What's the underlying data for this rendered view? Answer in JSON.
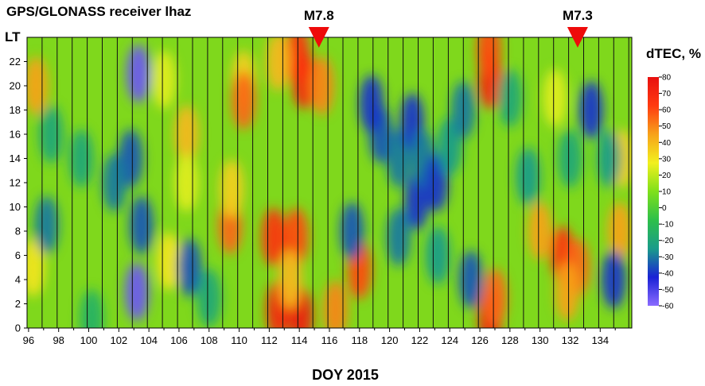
{
  "chart_data": {
    "type": "heatmap",
    "title": "GPS/GLONASS receiver lhaz",
    "xlabel": "DOY 2015",
    "ylabel": "LT",
    "colorbar_label": "dTEC, %",
    "xlim": [
      95.9,
      136.1
    ],
    "ylim": [
      0,
      24
    ],
    "x_ticks": [
      "96",
      "98",
      "100",
      "102",
      "104",
      "106",
      "108",
      "110",
      "112",
      "114",
      "116",
      "118",
      "120",
      "122",
      "124",
      "126",
      "128",
      "130",
      "132",
      "134"
    ],
    "y_ticks": [
      "0",
      "2",
      "4",
      "6",
      "8",
      "10",
      "12",
      "14",
      "16",
      "18",
      "20",
      "22"
    ],
    "colorbar_ticks": [
      "80",
      "70",
      "60",
      "50",
      "40",
      "30",
      "20",
      "10",
      "0",
      "-10",
      "-20",
      "-30",
      "-40",
      "-50",
      "-60"
    ],
    "colorbar_range": [
      -60,
      80
    ],
    "colorbar_colors": [
      "#8b6bff",
      "#1a22d6",
      "#1a9c8a",
      "#2ec04a",
      "#7fe01a",
      "#f2f01e",
      "#f7a21a",
      "#ff3a10",
      "#e8100f"
    ],
    "day_boundaries": [
      96.9,
      97.9,
      98.9,
      99.9,
      100.9,
      101.9,
      102.9,
      103.9,
      104.9,
      105.9,
      106.9,
      107.9,
      108.9,
      109.9,
      110.9,
      111.9,
      112.9,
      113.9,
      114.9,
      115.9,
      116.9,
      117.9,
      118.9,
      119.9,
      120.9,
      121.9,
      122.9,
      123.9,
      124.9,
      125.9,
      126.9,
      127.9,
      128.9,
      129.9,
      130.9,
      131.9,
      132.9,
      133.9,
      134.9,
      135.9
    ],
    "earthquakes": [
      {
        "label": "M7.8",
        "doy": 115.3
      },
      {
        "label": "M7.3",
        "doy": 132.5
      }
    ],
    "features": [
      {
        "doy": 114.3,
        "lt": 20.5,
        "value": 70
      },
      {
        "doy": 113.9,
        "lt": 22.5,
        "value": 65
      },
      {
        "doy": 112.6,
        "lt": 22.0,
        "value": 40
      },
      {
        "doy": 115.5,
        "lt": 20.0,
        "value": 50
      },
      {
        "doy": 112.3,
        "lt": 7.5,
        "value": 65
      },
      {
        "doy": 113.8,
        "lt": 7.5,
        "value": 60
      },
      {
        "doy": 112.6,
        "lt": 1.5,
        "value": 70
      },
      {
        "doy": 114.1,
        "lt": 1.0,
        "value": 75
      },
      {
        "doy": 113.4,
        "lt": 4.0,
        "value": 40
      },
      {
        "doy": 109.4,
        "lt": 8.5,
        "value": 55
      },
      {
        "doy": 109.5,
        "lt": 11.5,
        "value": 35
      },
      {
        "doy": 106.5,
        "lt": 16.0,
        "value": 40
      },
      {
        "doy": 106.5,
        "lt": 12.0,
        "value": 25
      },
      {
        "doy": 110.3,
        "lt": 20.5,
        "value": 35
      },
      {
        "doy": 110.3,
        "lt": 18.8,
        "value": 55
      },
      {
        "doy": 105.0,
        "lt": 20.5,
        "value": 25
      },
      {
        "doy": 105.3,
        "lt": 5.5,
        "value": 30
      },
      {
        "doy": 96.5,
        "lt": 20.0,
        "value": 45
      },
      {
        "doy": 96.3,
        "lt": 5.0,
        "value": 30
      },
      {
        "doy": 118.0,
        "lt": 4.8,
        "value": 60
      },
      {
        "doy": 116.4,
        "lt": 1.5,
        "value": 50
      },
      {
        "doy": 126.7,
        "lt": 1.0,
        "value": 75
      },
      {
        "doy": 127.0,
        "lt": 2.5,
        "value": 55
      },
      {
        "doy": 126.7,
        "lt": 20.5,
        "value": 70
      },
      {
        "doy": 126.6,
        "lt": 23.0,
        "value": 60
      },
      {
        "doy": 131.5,
        "lt": 6.0,
        "value": 65
      },
      {
        "doy": 132.5,
        "lt": 5.0,
        "value": 55
      },
      {
        "doy": 131.8,
        "lt": 3.0,
        "value": 45
      },
      {
        "doy": 130.0,
        "lt": 8.0,
        "value": 45
      },
      {
        "doy": 135.3,
        "lt": 8.0,
        "value": 45
      },
      {
        "doy": 135.5,
        "lt": 14.0,
        "value": 35
      },
      {
        "doy": 131.0,
        "lt": 19.0,
        "value": 25
      },
      {
        "doy": 103.3,
        "lt": 21.0,
        "value": -55
      },
      {
        "doy": 102.8,
        "lt": 14.0,
        "value": -35
      },
      {
        "doy": 103.2,
        "lt": 3.0,
        "value": -55
      },
      {
        "doy": 103.5,
        "lt": 8.5,
        "value": -35
      },
      {
        "doy": 101.7,
        "lt": 12.0,
        "value": -30
      },
      {
        "doy": 97.2,
        "lt": 8.5,
        "value": -30
      },
      {
        "doy": 99.5,
        "lt": 14.0,
        "value": -20
      },
      {
        "doy": 97.5,
        "lt": 16.0,
        "value": -20
      },
      {
        "doy": 106.7,
        "lt": 5.0,
        "value": -35
      },
      {
        "doy": 119.4,
        "lt": 16.0,
        "value": -35
      },
      {
        "doy": 120.6,
        "lt": 14.0,
        "value": -30
      },
      {
        "doy": 121.5,
        "lt": 17.0,
        "value": -40
      },
      {
        "doy": 121.8,
        "lt": 10.5,
        "value": -40
      },
      {
        "doy": 122.2,
        "lt": 14.0,
        "value": -30
      },
      {
        "doy": 123.1,
        "lt": 12.0,
        "value": -40
      },
      {
        "doy": 124.0,
        "lt": 15.0,
        "value": -25
      },
      {
        "doy": 124.9,
        "lt": 18.0,
        "value": -30
      },
      {
        "doy": 125.4,
        "lt": 4.0,
        "value": -35
      },
      {
        "doy": 117.5,
        "lt": 8.0,
        "value": -35
      },
      {
        "doy": 120.6,
        "lt": 7.5,
        "value": -30
      },
      {
        "doy": 123.2,
        "lt": 6.0,
        "value": -25
      },
      {
        "doy": 118.8,
        "lt": 18.5,
        "value": -40
      },
      {
        "doy": 133.4,
        "lt": 18.0,
        "value": -40
      },
      {
        "doy": 134.6,
        "lt": 14.0,
        "value": -25
      },
      {
        "doy": 132.0,
        "lt": 14.0,
        "value": -20
      },
      {
        "doy": 134.9,
        "lt": 4.0,
        "value": -40
      },
      {
        "doy": 129.2,
        "lt": 12.5,
        "value": -25
      },
      {
        "doy": 128.0,
        "lt": 19.0,
        "value": -20
      },
      {
        "doy": 108.0,
        "lt": 2.5,
        "value": -20
      },
      {
        "doy": 100.2,
        "lt": 0.8,
        "value": -15
      }
    ]
  }
}
